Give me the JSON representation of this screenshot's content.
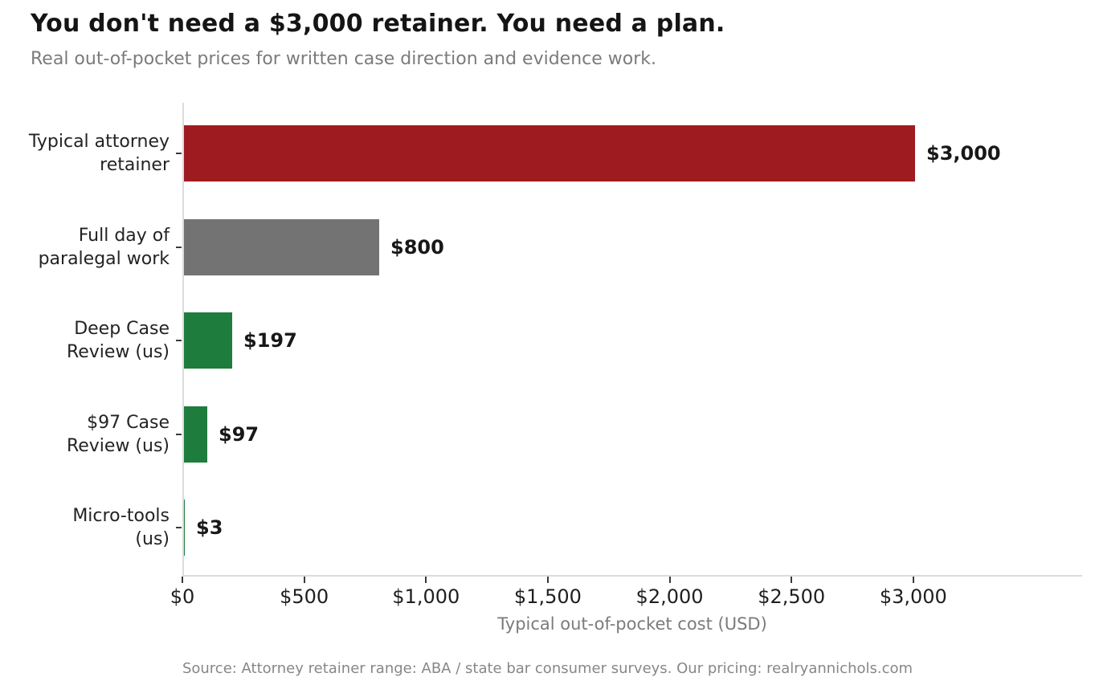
{
  "header": {
    "title": "You don't need a $3,000 retainer. You need a plan.",
    "subtitle": "Real out-of-pocket prices for written case direction and evidence work."
  },
  "chart_data": {
    "type": "bar",
    "orientation": "horizontal",
    "title": "You don't need a $3,000 retainer. You need a plan.",
    "subtitle": "Real out-of-pocket prices for written case direction and evidence work.",
    "categories": [
      "Typical attorney retainer",
      "Full day of paralegal work",
      "Deep Case Review (us)",
      "$97 Case Review (us)",
      "Micro-tools (us)"
    ],
    "category_lines": [
      [
        "Typical attorney",
        "retainer"
      ],
      [
        "Full day of",
        "paralegal work"
      ],
      [
        "Deep Case",
        "Review (us)"
      ],
      [
        "$97 Case",
        "Review (us)"
      ],
      [
        "Micro-tools",
        "(us)"
      ]
    ],
    "values": [
      3000,
      800,
      197,
      97,
      3
    ],
    "value_labels": [
      "$3,000",
      "$800",
      "$197",
      "$97",
      "$3"
    ],
    "bar_colors": [
      "#9e1c1f",
      "#737373",
      "#1e7d3c",
      "#1e7d3c",
      "#1e7d3c"
    ],
    "xlabel": "Typical out-of-pocket cost (USD)",
    "ylabel": "",
    "x_ticks": [
      0,
      500,
      1000,
      1500,
      2000,
      2500,
      3000
    ],
    "x_tick_labels": [
      "$0",
      "$500",
      "$1,000",
      "$1,500",
      "$2,000",
      "$2,500",
      "$3,000"
    ],
    "xlim": [
      0,
      3693
    ],
    "grid": false,
    "legend": null,
    "colors_meaning": {
      "#9e1c1f": "typical attorney retainer (expensive)",
      "#737373": "paralegal comparison",
      "#1e7d3c": "our offerings (cheap)"
    }
  },
  "footer": {
    "source": "Source: Attorney retainer range: ABA / state bar consumer surveys. Our pricing: realryannichols.com"
  }
}
